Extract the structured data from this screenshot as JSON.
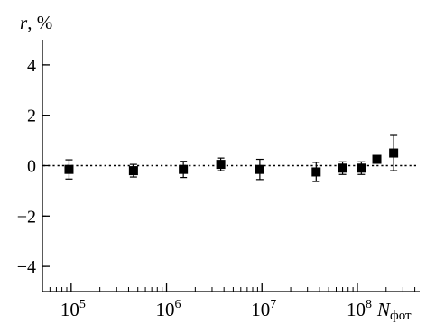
{
  "chart_data": {
    "type": "scatter",
    "ylabel_symbol": "r",
    "ylabel_unit": ", %",
    "xlabel_main": "N",
    "xlabel_sub": "фот",
    "x_scale": "log",
    "xlim": [
      50000,
      450000000
    ],
    "ylim": [
      -5,
      5
    ],
    "grid": false,
    "legend": "none",
    "reference_line_y": 0,
    "y_ticks": [
      {
        "value": -4,
        "label": "−4"
      },
      {
        "value": -2,
        "label": "−2"
      },
      {
        "value": 0,
        "label": "0"
      },
      {
        "value": 2,
        "label": "2"
      },
      {
        "value": 4,
        "label": "4"
      }
    ],
    "x_ticks": [
      {
        "value": 100000,
        "base": "10",
        "exp": "5"
      },
      {
        "value": 1000000,
        "base": "10",
        "exp": "6"
      },
      {
        "value": 10000000,
        "base": "10",
        "exp": "7"
      },
      {
        "value": 100000000,
        "base": "10",
        "exp": "8"
      }
    ],
    "series": [
      {
        "points": [
          {
            "x": 95000,
            "y": -0.15,
            "err": 0.38
          },
          {
            "x": 450000,
            "y": -0.2,
            "err": 0.25
          },
          {
            "x": 1500000,
            "y": -0.15,
            "err": 0.32
          },
          {
            "x": 3700000,
            "y": 0.05,
            "err": 0.25
          },
          {
            "x": 9500000,
            "y": -0.15,
            "err": 0.4
          },
          {
            "x": 37000000,
            "y": -0.25,
            "err": 0.38
          },
          {
            "x": 70000000,
            "y": -0.1,
            "err": 0.25
          },
          {
            "x": 110000000,
            "y": -0.1,
            "err": 0.25
          },
          {
            "x": 160000000,
            "y": 0.25,
            "err": 0.05
          },
          {
            "x": 240000000,
            "y": 0.5,
            "err": 0.7
          }
        ]
      }
    ]
  }
}
